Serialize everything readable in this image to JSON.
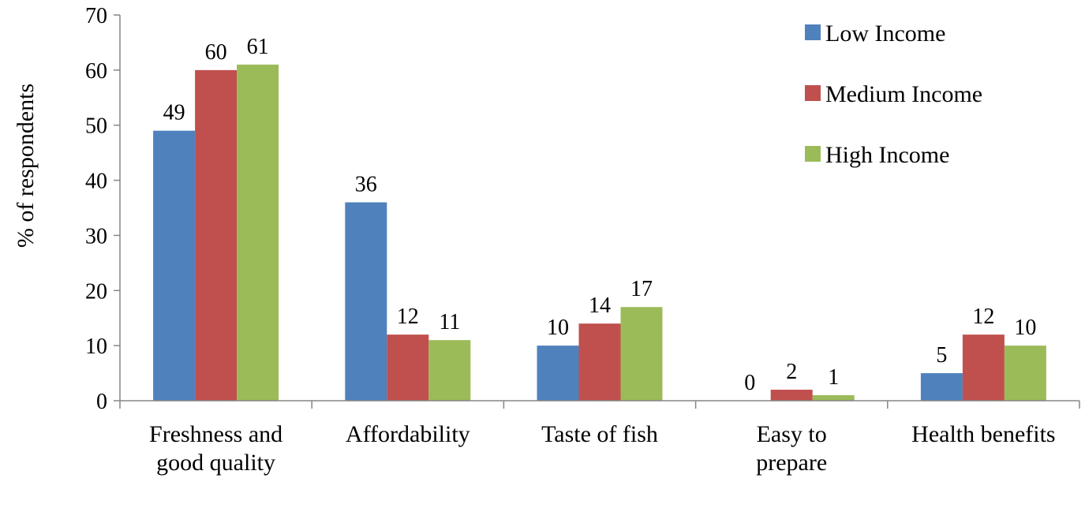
{
  "chart_data": {
    "type": "bar",
    "title": "",
    "xlabel": "",
    "ylabel": "% of respondents",
    "ylim": [
      0,
      70
    ],
    "yticks": [
      0,
      10,
      20,
      30,
      40,
      50,
      60,
      70
    ],
    "grid": false,
    "legend_position": "top-right",
    "categories": [
      [
        "Freshness and",
        "good quality"
      ],
      [
        "Affordability"
      ],
      [
        "Taste of fish"
      ],
      [
        "Easy to",
        "prepare"
      ],
      [
        "Health benefits"
      ]
    ],
    "series": [
      {
        "name": "Low Income",
        "color": "#4f81bd",
        "values": [
          49,
          36,
          10,
          0,
          5
        ]
      },
      {
        "name": "Medium Income",
        "color": "#c0504d",
        "values": [
          60,
          12,
          14,
          2,
          12
        ]
      },
      {
        "name": "High Income",
        "color": "#9bbb59",
        "values": [
          61,
          11,
          17,
          1,
          10
        ]
      }
    ]
  }
}
